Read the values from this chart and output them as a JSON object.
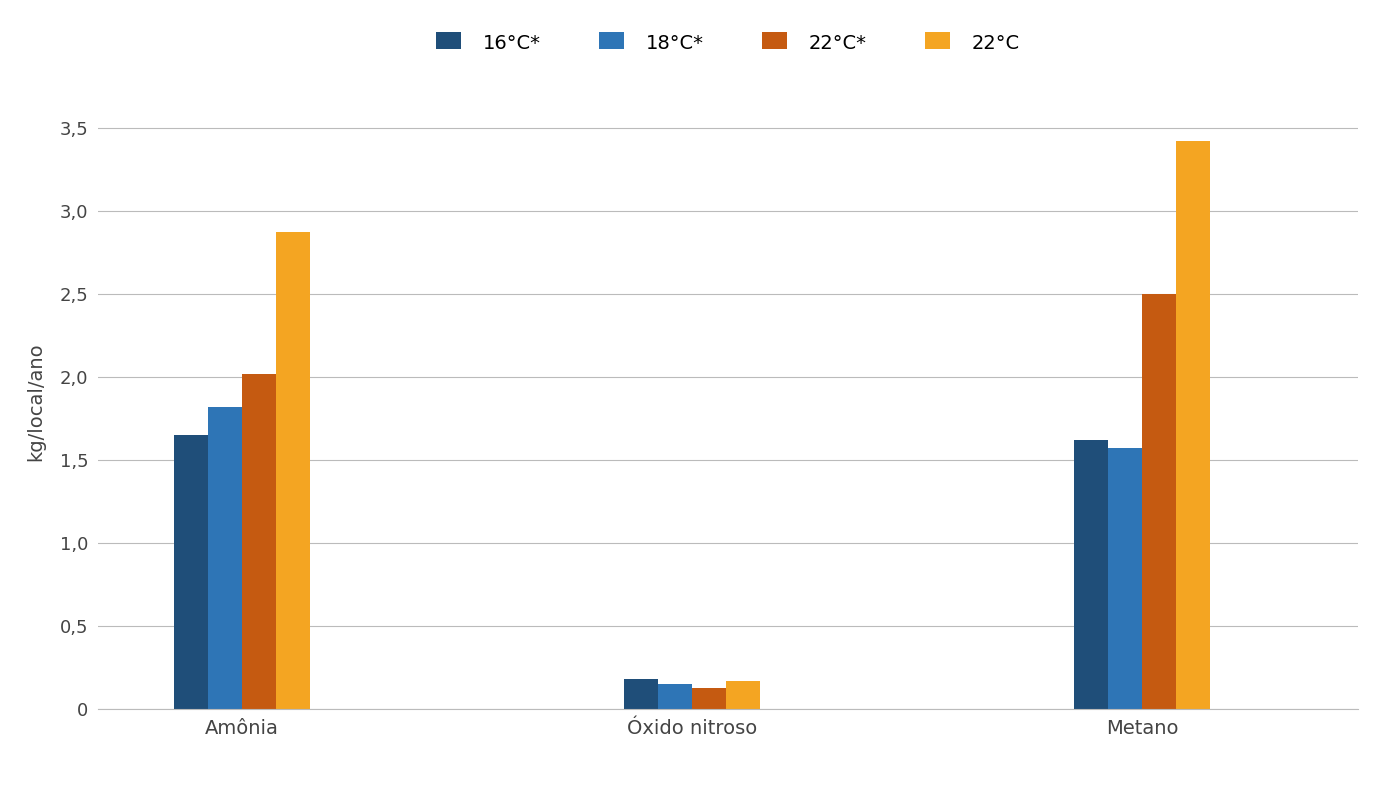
{
  "categories": [
    "Amônia",
    "Óxido nitroso",
    "Metano"
  ],
  "series": [
    {
      "label": "16°C*",
      "color": "#1f4e79",
      "values": [
        1.65,
        0.18,
        1.62
      ]
    },
    {
      "label": "18°C*",
      "color": "#2e75b6",
      "values": [
        1.82,
        0.15,
        1.57
      ]
    },
    {
      "label": "22°C*",
      "color": "#c55a11",
      "values": [
        2.02,
        0.13,
        2.5
      ]
    },
    {
      "label": "22°C",
      "color": "#f4a522",
      "values": [
        2.87,
        0.17,
        3.42
      ]
    }
  ],
  "ylabel": "kg/local/ano",
  "ylim": [
    0,
    3.7
  ],
  "yticks": [
    0,
    0.5,
    1.0,
    1.5,
    2.0,
    2.5,
    3.0,
    3.5
  ],
  "ytick_labels": [
    "0",
    "0,5",
    "1,0",
    "1,5",
    "2,0",
    "2,5",
    "3,0",
    "3,5"
  ],
  "background_color": "#ffffff",
  "grid_color": "#bbbbbb",
  "bar_width": 0.19,
  "legend_fontsize": 14,
  "axis_fontsize": 14,
  "tick_fontsize": 13,
  "group_positions": [
    1.0,
    3.5,
    6.0
  ],
  "xlim": [
    0.2,
    7.2
  ]
}
